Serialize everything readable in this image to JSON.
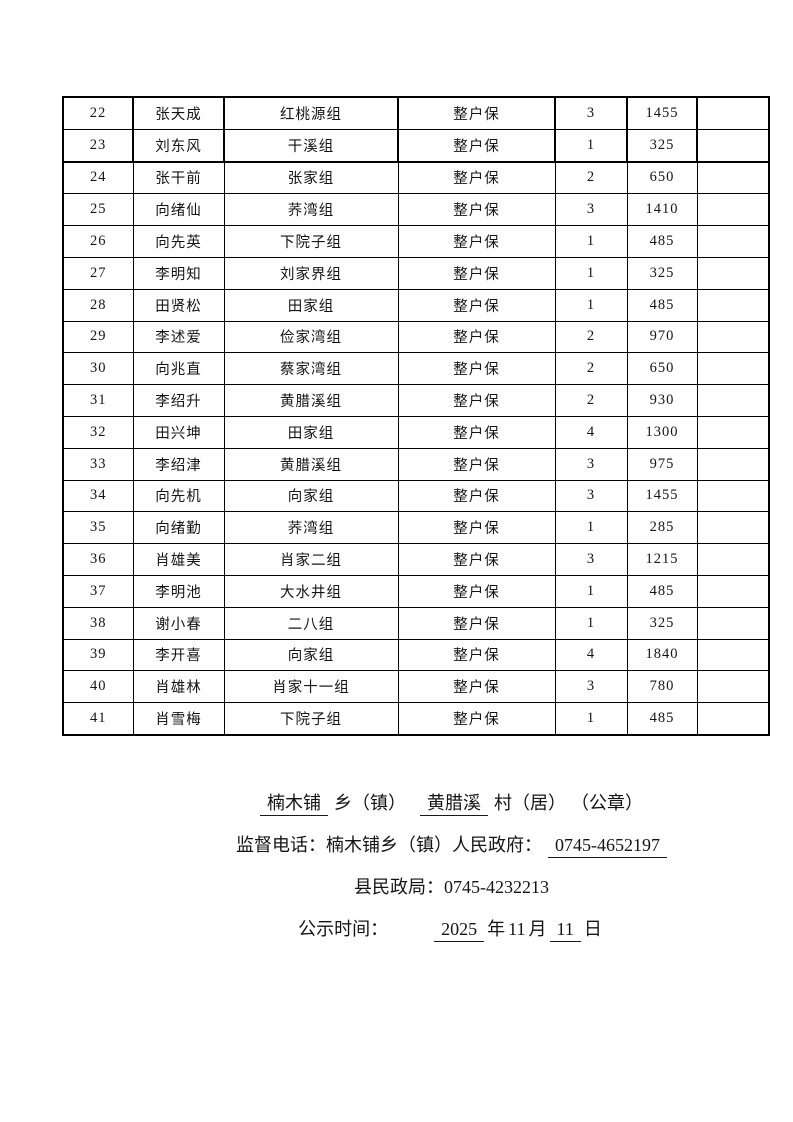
{
  "document": {
    "table": {
      "rows": [
        [
          "22",
          "张天成",
          "红桃源组",
          "整户保",
          "3",
          "1455",
          ""
        ],
        [
          "23",
          "刘东风",
          "干溪组",
          "整户保",
          "1",
          "325",
          ""
        ],
        [
          "24",
          "张干前",
          "张家组",
          "整户保",
          "2",
          "650",
          ""
        ],
        [
          "25",
          "向绪仙",
          "荞湾组",
          "整户保",
          "3",
          "1410",
          ""
        ],
        [
          "26",
          "向先英",
          "下院子组",
          "整户保",
          "1",
          "485",
          ""
        ],
        [
          "27",
          "李明知",
          "刘家界组",
          "整户保",
          "1",
          "325",
          ""
        ],
        [
          "28",
          "田贤松",
          "田家组",
          "整户保",
          "1",
          "485",
          ""
        ],
        [
          "29",
          "李述爱",
          "俭家湾组",
          "整户保",
          "2",
          "970",
          ""
        ],
        [
          "30",
          "向兆直",
          "蔡家湾组",
          "整户保",
          "2",
          "650",
          ""
        ],
        [
          "31",
          "李绍升",
          "黄腊溪组",
          "整户保",
          "2",
          "930",
          ""
        ],
        [
          "32",
          "田兴坤",
          "田家组",
          "整户保",
          "4",
          "1300",
          ""
        ],
        [
          "33",
          "李绍津",
          "黄腊溪组",
          "整户保",
          "3",
          "975",
          ""
        ],
        [
          "34",
          "向先机",
          "向家组",
          "整户保",
          "3",
          "1455",
          ""
        ],
        [
          "35",
          "向绪勤",
          "荞湾组",
          "整户保",
          "1",
          "285",
          ""
        ],
        [
          "36",
          "肖雄美",
          "肖家二组",
          "整户保",
          "3",
          "1215",
          ""
        ],
        [
          "37",
          "李明池",
          "大水井组",
          "整户保",
          "1",
          "485",
          ""
        ],
        [
          "38",
          "谢小春",
          "二八组",
          "整户保",
          "1",
          "325",
          ""
        ],
        [
          "39",
          "李开喜",
          "向家组",
          "整户保",
          "4",
          "1840",
          ""
        ],
        [
          "40",
          "肖雄林",
          "肖家十一组",
          "整户保",
          "3",
          "780",
          ""
        ],
        [
          "41",
          "肖雪梅",
          "下院子组",
          "整户保",
          "1",
          "485",
          ""
        ]
      ]
    },
    "footer": {
      "line1": {
        "township_name": "楠木铺",
        "township_label": "乡（镇）",
        "village_name": "黄腊溪",
        "village_label": "村（居）",
        "seal": "（公章）"
      },
      "line2": {
        "label": "监督电话：楠木铺乡（镇）人民政府：",
        "phone": "0745-4652197"
      },
      "line3": {
        "label": "县民政局：",
        "phone": "0745-4232213"
      },
      "line4": {
        "label": "公示时间：",
        "year": "2025",
        "year_unit": "年",
        "month": "11",
        "month_unit": "月",
        "day": "11",
        "day_unit": "日"
      }
    }
  }
}
